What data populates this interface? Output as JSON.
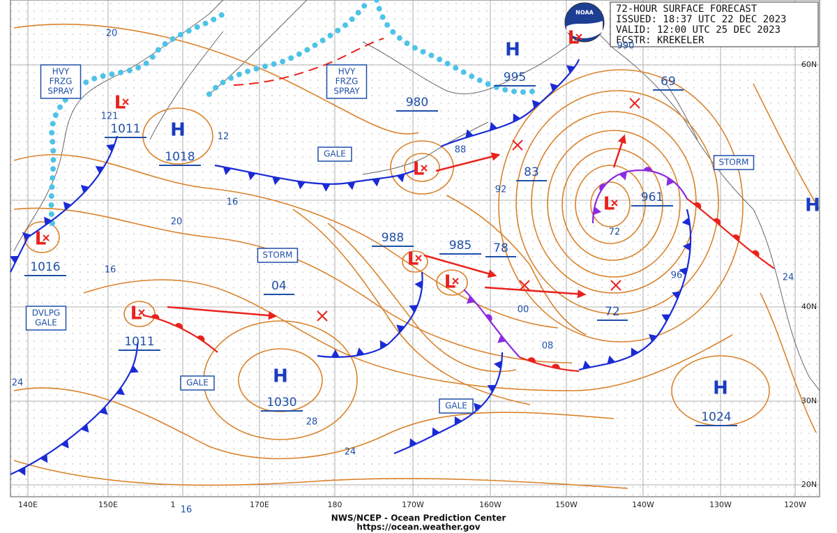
{
  "header": {
    "logo_text": "NOAA",
    "lines": [
      "72-HOUR SURFACE FORECAST",
      "ISSUED: 18:37 UTC 22 DEC 2023",
      "VALID:  12:00 UTC 25 DEC 2023",
      "FCSTR:  KREKELER"
    ]
  },
  "longitude_labels": [
    "140E",
    "150E",
    "1",
    "170E",
    "180",
    "170W",
    "160W",
    "150W",
    "140W",
    "130W",
    "120W"
  ],
  "latitude_labels": [
    "60N",
    "40N",
    "30N",
    "20N"
  ],
  "pressure_centers": [
    {
      "symbol": "L",
      "pressure": "1011"
    },
    {
      "symbol": "H",
      "pressure": "1018"
    },
    {
      "symbol": "L",
      "pressure": "1016"
    },
    {
      "symbol": "L",
      "pressure": "1011"
    },
    {
      "symbol": "H",
      "pressure": "1030"
    },
    {
      "symbol": "L",
      "pressure": "980"
    },
    {
      "symbol": "H",
      "pressure": "995"
    },
    {
      "symbol": "L",
      "pressure": "961"
    },
    {
      "symbol": "L",
      "pressure": "988"
    },
    {
      "symbol": "L",
      "pressure": "985"
    },
    {
      "symbol": "H",
      "pressure": "1024"
    },
    {
      "symbol": "H"
    },
    {
      "symbol": "L"
    }
  ],
  "forecast_pressures": [
    "83",
    "69",
    "78",
    "04",
    "72"
  ],
  "isobar_labels": [
    "20",
    "20",
    "16",
    "16",
    "16",
    "12",
    "121",
    "88",
    "92",
    "00",
    "08",
    "96",
    "72",
    "24",
    "24",
    "24",
    "28",
    "990"
  ],
  "warnings": [
    {
      "lines": [
        "HVY",
        "FRZG",
        "SPRAY"
      ]
    },
    {
      "lines": [
        "HVY",
        "FRZG",
        "SPRAY"
      ]
    },
    {
      "lines": [
        "GALE"
      ]
    },
    {
      "lines": [
        "STORM"
      ]
    },
    {
      "lines": [
        "STORM"
      ]
    },
    {
      "lines": [
        "DVLPG",
        "GALE"
      ]
    },
    {
      "lines": [
        "GALE"
      ]
    },
    {
      "lines": [
        "GALE"
      ]
    }
  ],
  "footer": {
    "agency": "NWS/NCEP - Ocean Prediction Center",
    "url": "https://ocean.weather.gov"
  }
}
